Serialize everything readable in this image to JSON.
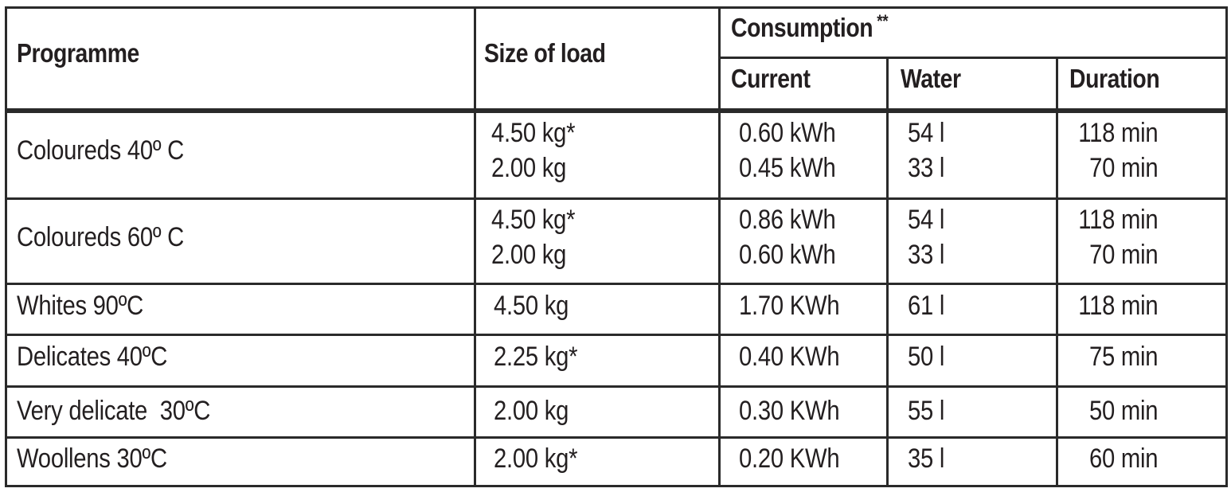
{
  "headers": {
    "programme": "Programme",
    "size_of_load": "Size of load",
    "consumption": "Consumption",
    "consumption_mark": "**",
    "current": "Current",
    "water": "Water",
    "duration": "Duration"
  },
  "rows": [
    {
      "programme": "Coloureds 40º C",
      "load": [
        "4.50 kg*",
        "2.00 kg"
      ],
      "current": [
        "0.60 kWh",
        "0.45 kWh"
      ],
      "water": [
        "54 l",
        "33 l"
      ],
      "duration": [
        "118 min",
        "70 min"
      ]
    },
    {
      "programme": "Coloureds 60º C",
      "load": [
        "4.50 kg*",
        "2.00 kg"
      ],
      "current": [
        "0.86 kWh",
        "0.60 kWh"
      ],
      "water": [
        "54 l",
        "33 l"
      ],
      "duration": [
        "118 min",
        "70 min"
      ]
    },
    {
      "programme": "Whites 90ºC",
      "load": [
        "4.50 kg"
      ],
      "current": [
        "1.70 KWh"
      ],
      "water": [
        "61 l"
      ],
      "duration": [
        "118 min"
      ]
    },
    {
      "programme": "Delicates 40ºC",
      "load": [
        "2.25 kg*"
      ],
      "current": [
        "0.40 KWh"
      ],
      "water": [
        "50 l"
      ],
      "duration": [
        "75 min"
      ]
    },
    {
      "programme": "Very delicate  30ºC",
      "load": [
        "2.00 kg"
      ],
      "current": [
        "0.30 KWh"
      ],
      "water": [
        "55 l"
      ],
      "duration": [
        "50 min"
      ]
    },
    {
      "programme": "Woollens 30ºC",
      "load": [
        "2.00 kg*"
      ],
      "current": [
        "0.20 KWh"
      ],
      "water": [
        "35 l"
      ],
      "duration": [
        "60 min"
      ]
    }
  ]
}
